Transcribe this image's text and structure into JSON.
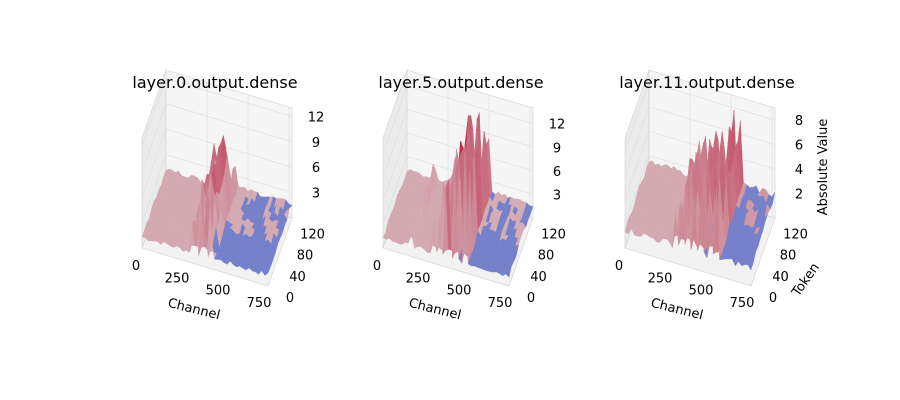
{
  "figure": {
    "colormap": "coolwarm",
    "colors": {
      "low": "#3b4cc0",
      "mid": "#dddddd",
      "high": "#b40426"
    }
  },
  "chart_data": [
    {
      "type": "surface3d",
      "title": "layer.0.output.dense",
      "xlabel": "Channel",
      "ylabel": "",
      "zlabel": "",
      "x_ticks": [
        "0",
        "250",
        "500",
        "750"
      ],
      "y_ticks": [
        "0",
        "40",
        "80",
        "120"
      ],
      "z_ticks": [
        "3",
        "6",
        "9",
        "12"
      ],
      "xlim": [
        0,
        768
      ],
      "ylim": [
        0,
        128
      ],
      "zlim": [
        0,
        13
      ],
      "baseline": 1.0,
      "spikes": [
        {
          "channel": 300,
          "height": 7.5
        },
        {
          "channel": 330,
          "height": 6.5
        },
        {
          "channel": 360,
          "height": 8.5
        },
        {
          "channel": 390,
          "height": 6.0
        },
        {
          "channel": 420,
          "height": 5.0
        }
      ]
    },
    {
      "type": "surface3d",
      "title": "layer.5.output.dense",
      "xlabel": "Channel",
      "ylabel": "",
      "zlabel": "",
      "x_ticks": [
        "0",
        "250",
        "500",
        "750"
      ],
      "y_ticks": [
        "0",
        "40",
        "80",
        "120"
      ],
      "z_ticks": [
        "3",
        "6",
        "9",
        "12"
      ],
      "xlim": [
        0,
        768
      ],
      "ylim": [
        0,
        128
      ],
      "zlim": [
        0,
        14
      ],
      "baseline": 1.0,
      "spikes": [
        {
          "channel": 180,
          "height": 4.0
        },
        {
          "channel": 220,
          "height": 5.0
        },
        {
          "channel": 260,
          "height": 6.0
        },
        {
          "channel": 300,
          "height": 7.0
        },
        {
          "channel": 340,
          "height": 9.0
        },
        {
          "channel": 380,
          "height": 11.0
        },
        {
          "channel": 410,
          "height": 13.0
        },
        {
          "channel": 440,
          "height": 12.5
        },
        {
          "channel": 470,
          "height": 13.5
        },
        {
          "channel": 500,
          "height": 12.0
        }
      ]
    },
    {
      "type": "surface3d",
      "title": "layer.11.output.dense",
      "xlabel": "Channel",
      "ylabel": "Token",
      "zlabel": "Absolute Value",
      "x_ticks": [
        "0",
        "250",
        "500",
        "750"
      ],
      "y_ticks": [
        "0",
        "40",
        "80",
        "120"
      ],
      "z_ticks": [
        "2",
        "4",
        "6",
        "8"
      ],
      "xlim": [
        0,
        768
      ],
      "ylim": [
        0,
        128
      ],
      "zlim": [
        0,
        9
      ],
      "baseline": 1.2,
      "spikes": [
        {
          "channel": 220,
          "height": 4.5
        },
        {
          "channel": 260,
          "height": 5.0
        },
        {
          "channel": 300,
          "height": 5.5
        },
        {
          "channel": 340,
          "height": 6.0
        },
        {
          "channel": 380,
          "height": 5.5
        },
        {
          "channel": 420,
          "height": 6.5
        },
        {
          "channel": 460,
          "height": 7.0
        },
        {
          "channel": 490,
          "height": 7.5
        },
        {
          "channel": 520,
          "height": 8.0
        },
        {
          "channel": 550,
          "height": 7.5
        }
      ]
    }
  ]
}
